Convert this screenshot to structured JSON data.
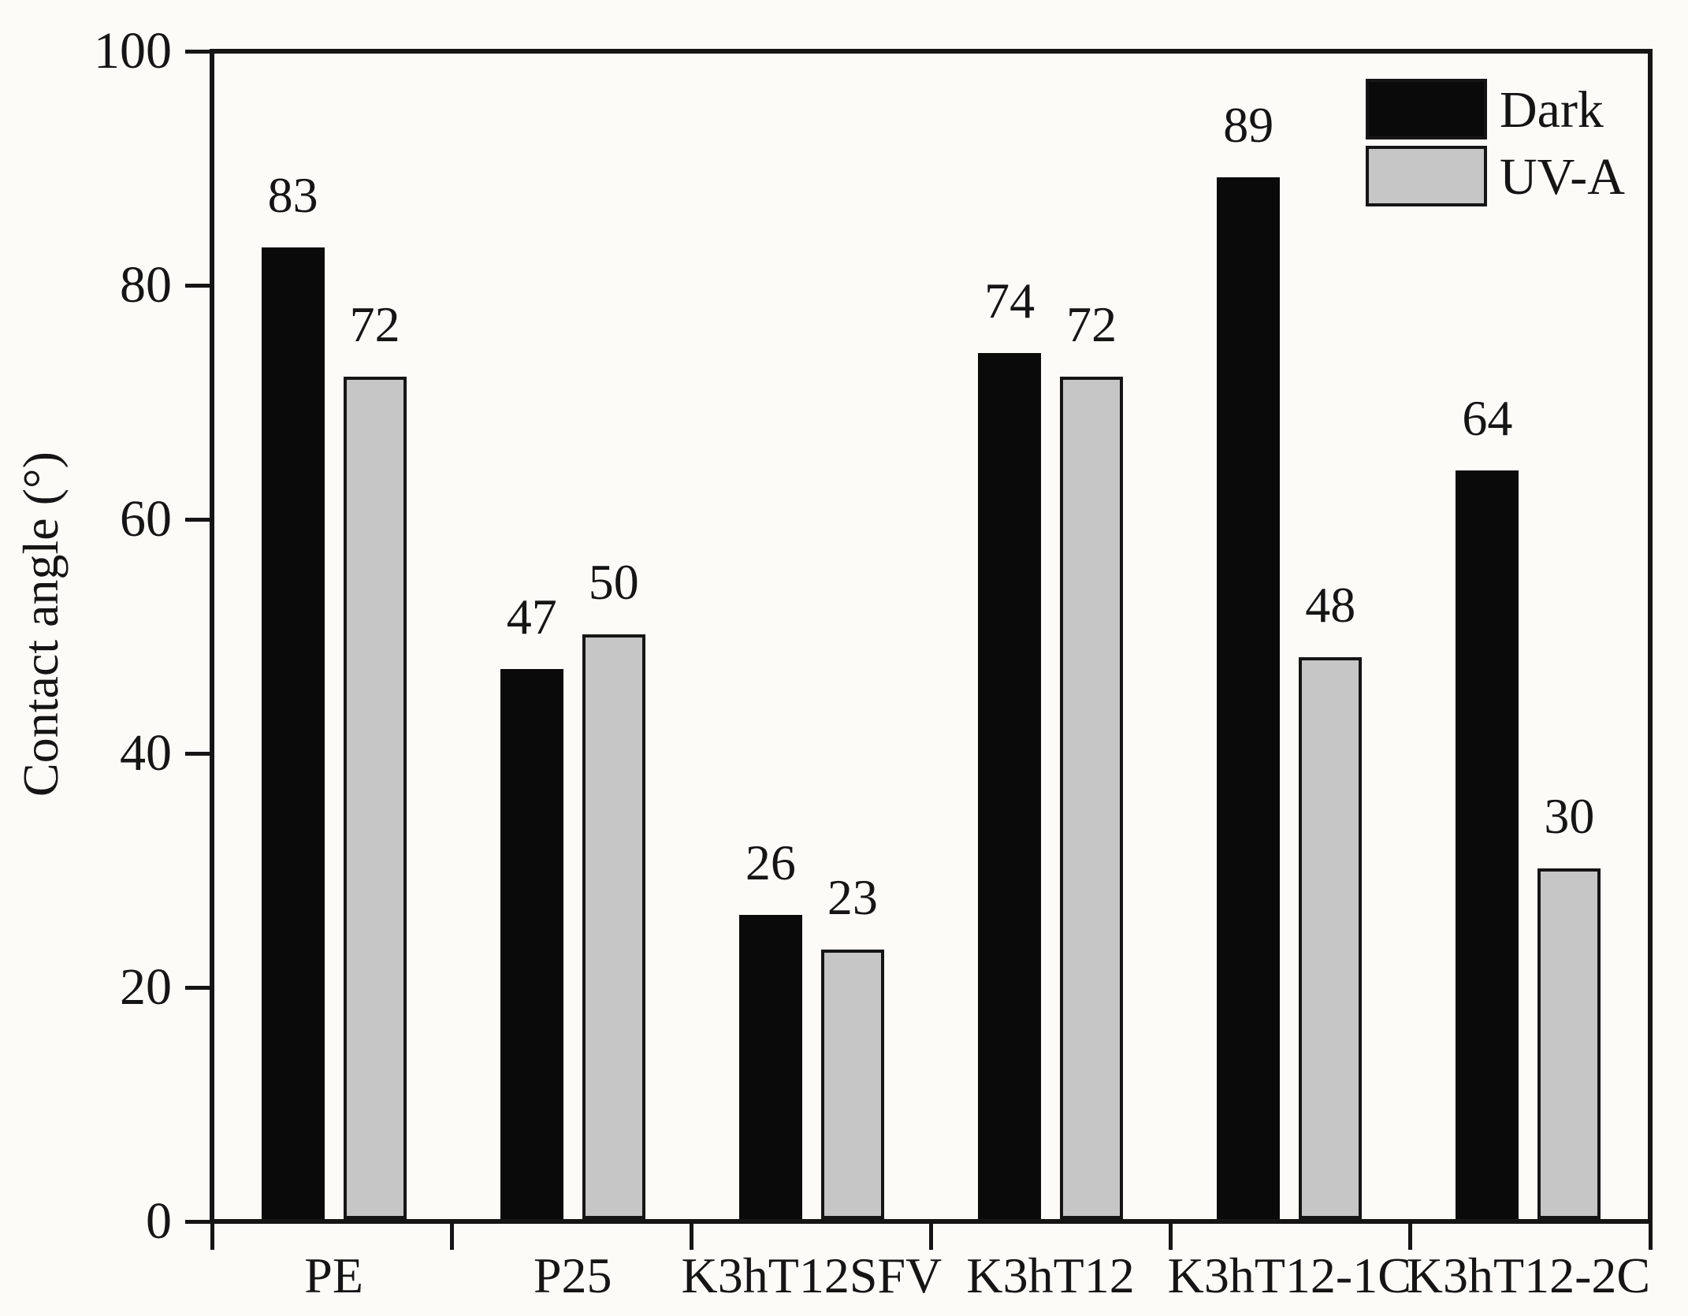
{
  "chart_data": {
    "type": "bar",
    "title": "",
    "categories": [
      "PE",
      "P25",
      "K3hT12SFV",
      "K3hT12",
      "K3hT12-1C",
      "K3hT12-2C"
    ],
    "series": [
      {
        "name": "Dark",
        "color": "#0a0a0a",
        "values": [
          83,
          47,
          26,
          74,
          89,
          64
        ]
      },
      {
        "name": "UV-A",
        "color": "#c6c6c6",
        "values": [
          72,
          50,
          23,
          72,
          48,
          30
        ]
      }
    ],
    "xlabel": "",
    "ylabel": "Contact angle (°)",
    "ylim": [
      0,
      100
    ],
    "yticks": [
      0,
      20,
      40,
      60,
      80,
      100
    ],
    "grid": false,
    "legend_position": "top-right",
    "bar_value_labels": true
  },
  "colors": {
    "background": "#fcfbf8",
    "ink": "#151515",
    "dark_series": "#0a0a0a",
    "uva_series": "#c6c6c6"
  }
}
